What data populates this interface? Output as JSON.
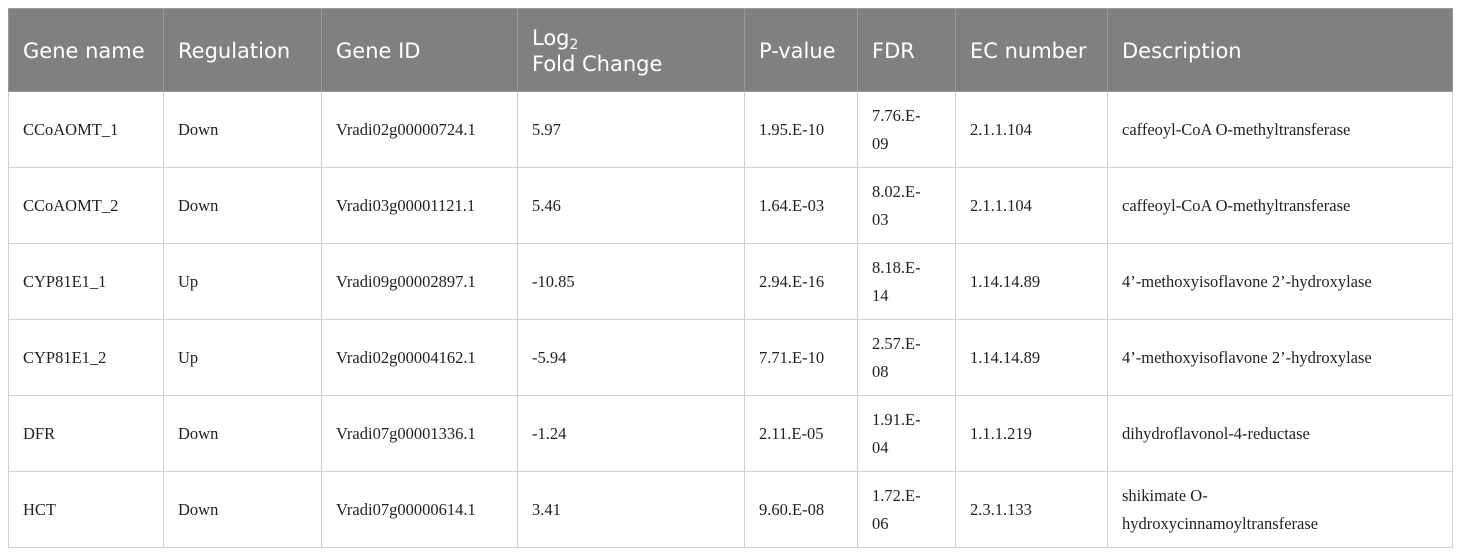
{
  "table": {
    "header": [
      "Gene name",
      "Regulation",
      "Gene ID",
      {
        "text": "Log",
        "sub": "2",
        "rest": "Fold Change"
      },
      "P-value",
      "FDR",
      "EC number",
      "Description"
    ],
    "rows": [
      [
        "CCoAOMT_1",
        "Down",
        "Vradi02g00000724.1",
        "5.97",
        "1.95.E-10",
        "7.76.E-09",
        "2.1.1.104",
        "caffeoyl-CoA O-methyltransferase"
      ],
      [
        "CCoAOMT_2",
        "Down",
        "Vradi03g00001121.1",
        "5.46",
        "1.64.E-03",
        "8.02.E-03",
        "2.1.1.104",
        "caffeoyl-CoA O-methyltransferase"
      ],
      [
        "CYP81E1_1",
        "Up",
        "Vradi09g00002897.1",
        "-10.85",
        "2.94.E-16",
        "8.18.E-14",
        "1.14.14.89",
        "4’-methoxyisoflavone 2’-hydroxylase"
      ],
      [
        "CYP81E1_2",
        "Up",
        "Vradi02g00004162.1",
        "-5.94",
        "7.71.E-10",
        "2.57.E-08",
        "1.14.14.89",
        "4’-methoxyisoflavone 2’-hydroxylase"
      ],
      [
        "DFR",
        "Down",
        "Vradi07g00001336.1",
        "-1.24",
        "2.11.E-05",
        "1.91.E-04",
        "1.1.1.219",
        "dihydroflavonol-4-reductase"
      ],
      [
        "HCT",
        "Down",
        "Vradi07g00000614.1",
        "3.41",
        "9.60.E-08",
        "1.72.E-06",
        "2.3.1.133",
        "shikimate O-hydroxycinnamoyltransferase"
      ]
    ]
  }
}
